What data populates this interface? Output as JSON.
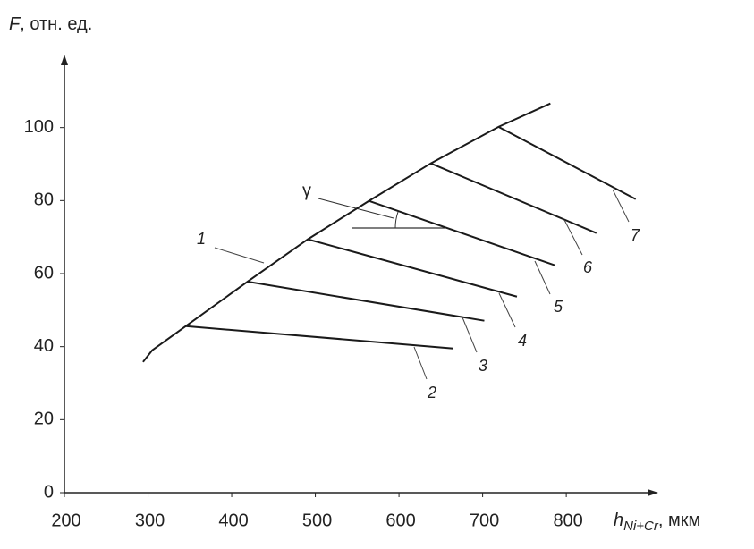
{
  "chart_data": {
    "type": "line",
    "ylabel_var": "F",
    "ylabel_unit": ", отн. ед.",
    "xlabel_var": "h",
    "xlabel_sub": "Ni+Cr",
    "xlabel_unit": ", мкм",
    "angle_label": "γ",
    "xlim": [
      200,
      910
    ],
    "ylim": [
      0,
      120
    ],
    "xticks": [
      200,
      300,
      400,
      500,
      600,
      700,
      800
    ],
    "yticks": [
      0,
      20,
      40,
      60,
      80,
      100
    ],
    "series": [
      {
        "name": "1",
        "color": "#1a1a1a",
        "x": [
          294,
          305,
          345,
          419,
          491,
          564,
          638,
          719,
          781
        ],
        "values": [
          35.8,
          39,
          45.6,
          57.8,
          69.4,
          79.9,
          90.2,
          100.2,
          106.6
        ]
      },
      {
        "name": "2",
        "color": "#1a1a1a",
        "x": [
          345,
          665
        ],
        "values": [
          45.6,
          39.5
        ]
      },
      {
        "name": "3",
        "color": "#1a1a1a",
        "x": [
          419,
          702
        ],
        "values": [
          57.8,
          47.1
        ]
      },
      {
        "name": "4",
        "color": "#1a1a1a",
        "x": [
          491,
          741
        ],
        "values": [
          69.4,
          53.7
        ]
      },
      {
        "name": "5",
        "color": "#1a1a1a",
        "x": [
          564,
          786
        ],
        "values": [
          79.9,
          62.3
        ]
      },
      {
        "name": "6",
        "color": "#1a1a1a",
        "x": [
          638,
          836
        ],
        "values": [
          90.2,
          71.1
        ]
      },
      {
        "name": "7",
        "color": "#1a1a1a",
        "x": [
          719,
          883
        ],
        "values": [
          100.2,
          80.4
        ]
      }
    ]
  }
}
